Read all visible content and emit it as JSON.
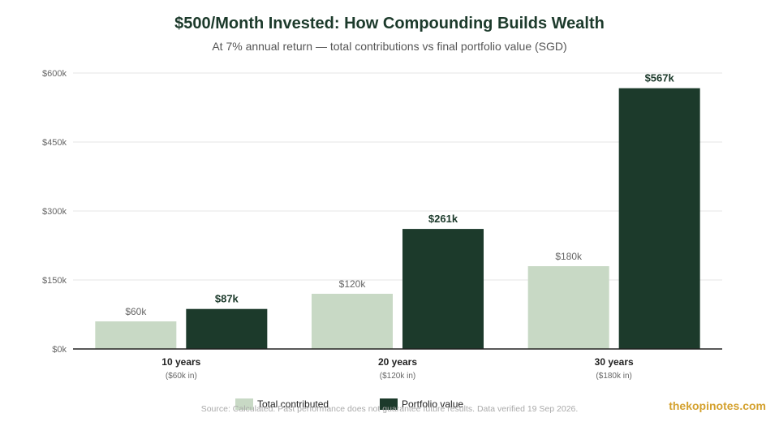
{
  "chart_data": {
    "type": "bar",
    "title": "$500/Month Invested: How Compounding Builds Wealth",
    "subtitle": "At 7% annual return — total contributions vs final portfolio value (SGD)",
    "categories": [
      "10 years",
      "20 years",
      "30 years"
    ],
    "category_sublabels": [
      "($60k in)",
      "($120k in)",
      "($180k in)"
    ],
    "series": [
      {
        "name": "Total contributed",
        "values": [
          60000,
          120000,
          180000
        ],
        "value_labels": [
          "$60k",
          "$120k",
          "$180k"
        ],
        "color": "#c8d9c5"
      },
      {
        "name": "Portfolio value",
        "values": [
          87000,
          261000,
          567000
        ],
        "value_labels": [
          "$87k",
          "$261k",
          "$567k"
        ],
        "color": "#1c3a2b"
      }
    ],
    "ylim": [
      0,
      600000
    ],
    "yticks": [
      0,
      150000,
      300000,
      450000,
      600000
    ],
    "ytick_labels": [
      "$0k",
      "$150k",
      "$300k",
      "$450k",
      "$600k"
    ],
    "grid": true,
    "legend_position": "bottom"
  },
  "footer": {
    "source": "Source: Calculated. Past performance does not guarantee future results. Data verified 19 Sep 2026.",
    "brand": "thekopinotes.com"
  },
  "colors": {
    "title": "#1c3a2b",
    "axis": "#222222",
    "grid": "#e6e6e6",
    "tick_text": "#666666",
    "brand": "#d4a12e"
  }
}
